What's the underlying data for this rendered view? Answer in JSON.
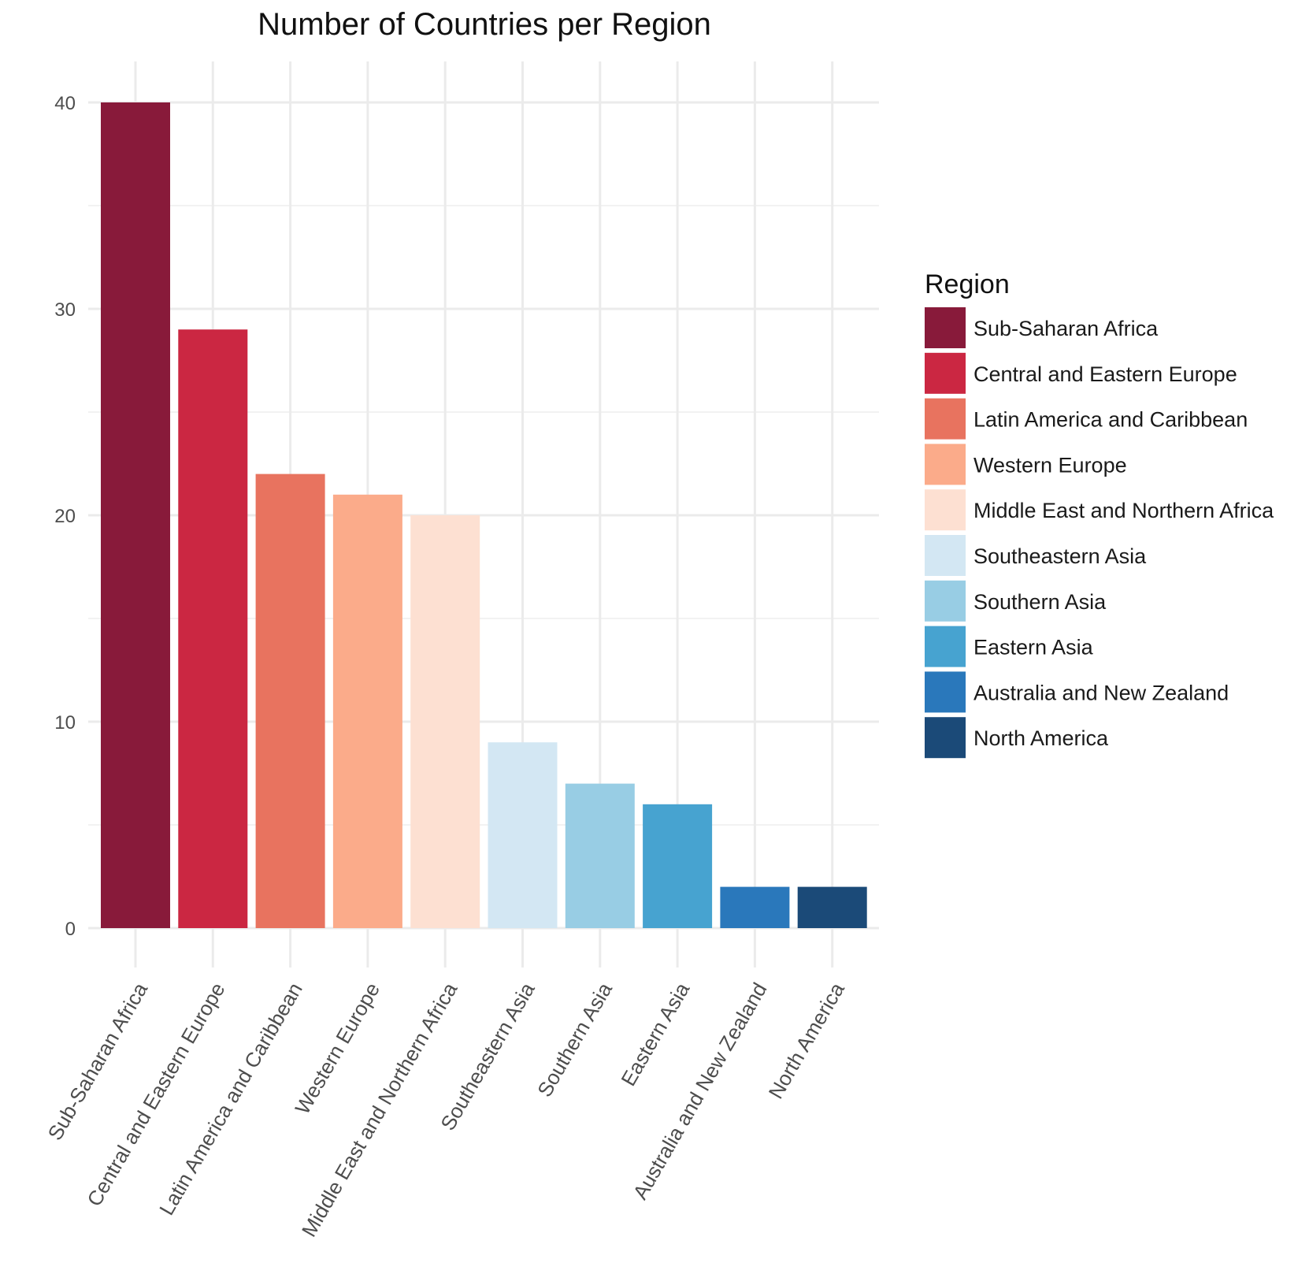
{
  "chart_data": {
    "type": "bar",
    "title": "Number of Countries per Region",
    "xlabel": "",
    "ylabel": "",
    "categories": [
      "Sub-Saharan Africa",
      "Central and Eastern Europe",
      "Latin America and Caribbean",
      "Western Europe",
      "Middle East and Northern Africa",
      "Southeastern Asia",
      "Southern Asia",
      "Eastern Asia",
      "Australia and New Zealand",
      "North America"
    ],
    "values": [
      40,
      29,
      22,
      21,
      20,
      9,
      7,
      6,
      2,
      2
    ],
    "colors": [
      "#881a3a",
      "#cb2742",
      "#e8735f",
      "#fbab8a",
      "#fde0d2",
      "#d3e7f3",
      "#98cde4",
      "#47a3d0",
      "#2a78bb",
      "#1b4a78"
    ],
    "yticks": [
      0,
      10,
      20,
      30,
      40
    ],
    "ylim": [
      0,
      40
    ],
    "grid": true,
    "legend": {
      "title": "Region",
      "position": "right"
    }
  }
}
